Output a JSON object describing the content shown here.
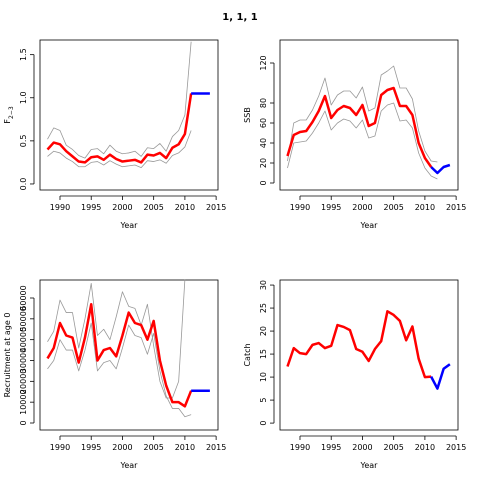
{
  "title": "1, 1, 1",
  "chart_data": [
    {
      "type": "line",
      "xlabel": "Year",
      "ylabel": "F",
      "ylabel_subscript": "2−3",
      "x": [
        1988,
        1989,
        1990,
        1991,
        1992,
        1993,
        1994,
        1995,
        1996,
        1997,
        1998,
        1999,
        2000,
        2001,
        2002,
        2003,
        2004,
        2005,
        2006,
        2007,
        2008,
        2009,
        2010,
        2011,
        2012,
        2013,
        2014
      ],
      "xlim": [
        1986.8,
        2015.3
      ],
      "xticks": [
        1990,
        1995,
        2000,
        2005,
        2010,
        2015
      ],
      "ylim": [
        -0.07,
        1.67
      ],
      "yticks": [
        {
          "value": 0,
          "label": "0.0"
        },
        0.5,
        {
          "value": 1,
          "label": "1.0"
        },
        1.5
      ],
      "series": [
        {
          "color": "#999999",
          "values": [
            0.52,
            0.65,
            0.62,
            0.45,
            0.4,
            0.33,
            0.3,
            0.4,
            0.41,
            0.35,
            0.45,
            0.38,
            0.35,
            0.36,
            0.38,
            0.32,
            0.42,
            0.41,
            0.47,
            0.38,
            0.55,
            0.62,
            0.8,
            1.65,
            null,
            null,
            null
          ]
        },
        {
          "color": "#999999",
          "values": [
            0.32,
            0.38,
            0.36,
            0.3,
            0.26,
            0.2,
            0.2,
            0.25,
            0.26,
            0.22,
            0.27,
            0.23,
            0.2,
            0.21,
            0.22,
            0.19,
            0.27,
            0.26,
            0.28,
            0.24,
            0.33,
            0.36,
            0.43,
            0.62,
            null,
            null,
            null
          ]
        },
        {
          "color": "#ff0000",
          "values": [
            0.4,
            0.48,
            0.46,
            0.38,
            0.32,
            0.26,
            0.25,
            0.31,
            0.32,
            0.28,
            0.34,
            0.29,
            0.26,
            0.27,
            0.28,
            0.25,
            0.34,
            0.33,
            0.36,
            0.3,
            0.42,
            0.46,
            0.58,
            1.05,
            null,
            null,
            null
          ]
        },
        {
          "color": "#0000ff",
          "values": [
            null,
            null,
            null,
            null,
            null,
            null,
            null,
            null,
            null,
            null,
            null,
            null,
            null,
            null,
            null,
            null,
            null,
            null,
            null,
            null,
            null,
            null,
            null,
            1.05,
            1.05,
            1.05,
            1.05
          ]
        }
      ]
    },
    {
      "type": "line",
      "xlabel": "Year",
      "ylabel": "SSB",
      "x": [
        1988,
        1989,
        1990,
        1991,
        1992,
        1993,
        1994,
        1995,
        1996,
        1997,
        1998,
        1999,
        2000,
        2001,
        2002,
        2003,
        2004,
        2005,
        2006,
        2007,
        2008,
        2009,
        2010,
        2011,
        2012,
        2013,
        2014
      ],
      "xlim": [
        1986.8,
        2015.3
      ],
      "xticks": [
        1990,
        1995,
        2000,
        2005,
        2010,
        2015
      ],
      "ylim": [
        -7,
        143
      ],
      "yticks": [
        0,
        20,
        40,
        60,
        80,
        120
      ],
      "series": [
        {
          "color": "#999999",
          "values": [
            22,
            60,
            63,
            63,
            73,
            87,
            105,
            78,
            88,
            92,
            92,
            85,
            96,
            72,
            75,
            108,
            112,
            117,
            95,
            95,
            84,
            52,
            32,
            22,
            21,
            null,
            null
          ]
        },
        {
          "color": "#999999",
          "values": [
            15,
            40,
            41,
            42,
            50,
            60,
            72,
            53,
            60,
            64,
            62,
            55,
            63,
            45,
            47,
            72,
            78,
            80,
            62,
            63,
            55,
            30,
            15,
            7,
            4,
            null,
            null
          ]
        },
        {
          "color": "#ff0000",
          "values": [
            27,
            48,
            51,
            52,
            61,
            72,
            87,
            65,
            73,
            77,
            75,
            68,
            78,
            57,
            60,
            88,
            93,
            95,
            77,
            77,
            68,
            40,
            25,
            16,
            null,
            null,
            null
          ]
        },
        {
          "color": "#0000ff",
          "values": [
            null,
            null,
            null,
            null,
            null,
            null,
            null,
            null,
            null,
            null,
            null,
            null,
            null,
            null,
            null,
            null,
            null,
            null,
            null,
            null,
            null,
            null,
            null,
            16,
            10,
            16,
            18
          ]
        }
      ]
    },
    {
      "type": "line",
      "xlabel": "Year",
      "ylabel": "Recruitment at age 0",
      "x": [
        1988,
        1989,
        1990,
        1991,
        1992,
        1993,
        1994,
        1995,
        1996,
        1997,
        1998,
        1999,
        2000,
        2001,
        2002,
        2003,
        2004,
        2005,
        2006,
        2007,
        2008,
        2009,
        2010,
        2011,
        2012,
        2013,
        2014
      ],
      "xlim": [
        1986.8,
        2015.3
      ],
      "xticks": [
        1990,
        1995,
        2000,
        2005,
        2010,
        2015
      ],
      "ylim": [
        -3360,
        68640
      ],
      "yticks": [
        0,
        10000,
        20000,
        30000,
        40000,
        50000,
        60000
      ],
      "series": [
        {
          "color": "#999999",
          "values": [
            39000,
            44000,
            59000,
            53000,
            53000,
            36000,
            50000,
            67000,
            42000,
            45000,
            40000,
            51000,
            63000,
            56000,
            55000,
            47000,
            57000,
            37000,
            20000,
            12000,
            12000,
            20000,
            69000,
            null,
            null,
            null,
            null
          ]
        },
        {
          "color": "#999999",
          "values": [
            26000,
            30000,
            40000,
            35000,
            35000,
            25000,
            35000,
            48000,
            25000,
            29000,
            30000,
            26000,
            36000,
            47000,
            42000,
            41000,
            33000,
            43000,
            25000,
            13000,
            7000,
            7000,
            3000,
            4000,
            null,
            null,
            null
          ]
        },
        {
          "color": "#ff0000",
          "values": [
            31000,
            36000,
            48000,
            42000,
            41000,
            29000,
            41000,
            57000,
            30000,
            35000,
            36000,
            32000,
            42000,
            53000,
            48000,
            47000,
            40000,
            49000,
            30000,
            18000,
            10000,
            10000,
            8000,
            15500,
            null,
            null,
            null
          ]
        },
        {
          "color": "#0000ff",
          "values": [
            null,
            null,
            null,
            null,
            null,
            null,
            null,
            null,
            null,
            null,
            null,
            null,
            null,
            null,
            null,
            null,
            null,
            null,
            null,
            null,
            null,
            null,
            null,
            15500,
            15500,
            15500,
            15500
          ]
        }
      ]
    },
    {
      "type": "line",
      "xlabel": "Year",
      "ylabel": "Catch",
      "x": [
        1988,
        1989,
        1990,
        1991,
        1992,
        1993,
        1994,
        1995,
        1996,
        1997,
        1998,
        1999,
        2000,
        2001,
        2002,
        2003,
        2004,
        2005,
        2006,
        2007,
        2008,
        2009,
        2010,
        2011,
        2012,
        2013,
        2014
      ],
      "xlim": [
        1986.8,
        2015.3
      ],
      "xticks": [
        1990,
        1995,
        2000,
        2005,
        2010,
        2015
      ],
      "ylim": [
        -1.5,
        31.1
      ],
      "yticks": [
        0,
        5,
        10,
        15,
        20,
        25,
        30
      ],
      "series": [
        {
          "color": "#ff0000",
          "values": [
            12.3,
            16.3,
            15.2,
            15.0,
            17.0,
            17.4,
            16.3,
            16.8,
            21.3,
            20.9,
            20.2,
            16.1,
            15.5,
            13.5,
            16.1,
            17.8,
            24.3,
            23.5,
            22.2,
            18.0,
            21.0,
            14.0,
            10.0,
            10.1,
            null,
            null,
            null
          ]
        },
        {
          "color": "#0000ff",
          "values": [
            null,
            null,
            null,
            null,
            null,
            null,
            null,
            null,
            null,
            null,
            null,
            null,
            null,
            null,
            null,
            null,
            null,
            null,
            null,
            null,
            null,
            null,
            null,
            10.1,
            7.5,
            11.8,
            12.8
          ]
        }
      ]
    }
  ]
}
